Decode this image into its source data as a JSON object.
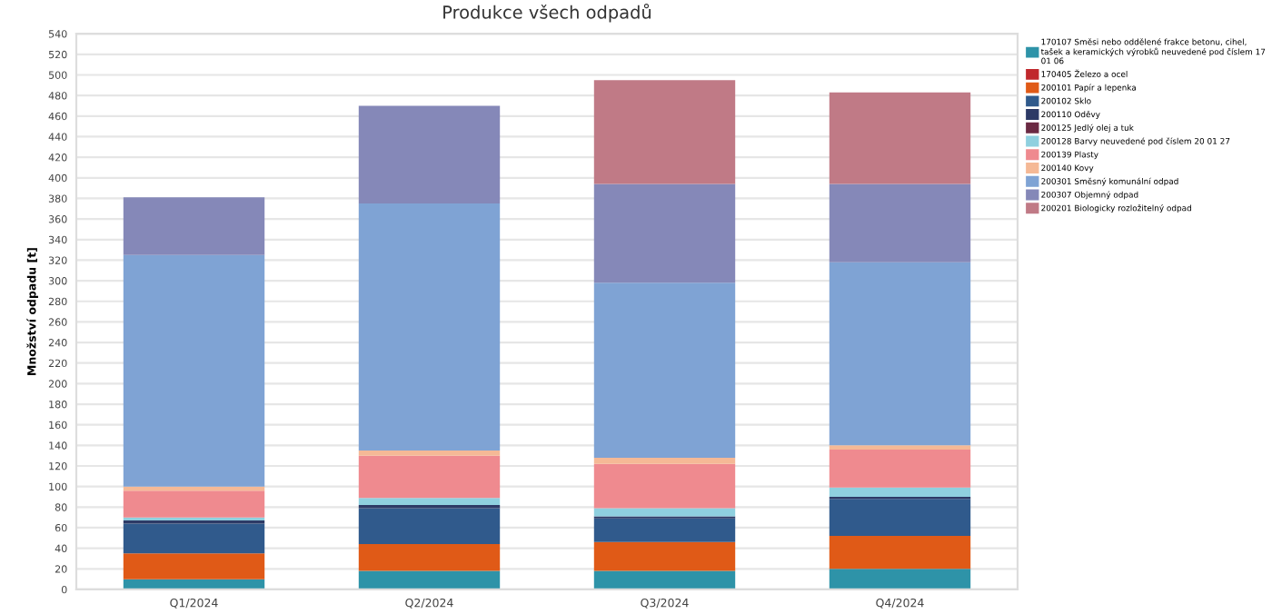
{
  "chart_data": {
    "type": "bar",
    "title": "Produkce všech odpadů",
    "ylabel": "Množství odpadu [t]",
    "categories": [
      "Q1/2024",
      "Q2/2024",
      "Q3/2024",
      "Q4/2024"
    ],
    "stacked": true,
    "ylim": [
      0,
      540
    ],
    "yticks": [
      0,
      20,
      40,
      60,
      80,
      100,
      120,
      140,
      160,
      180,
      200,
      220,
      240,
      260,
      280,
      300,
      320,
      340,
      360,
      380,
      400,
      420,
      440,
      460,
      480,
      500,
      520,
      540
    ],
    "grid": "y",
    "legend": "right",
    "series": [
      {
        "name": "170107 Směsi nebo oddělené frakce betonu, cihel,\ntašek a keramických výrobků neuvedené pod číslem 17\n01 06",
        "color": "#2e93a8",
        "values": [
          10,
          18,
          18,
          20
        ]
      },
      {
        "name": "170405 Železo a ocel",
        "color": "#c0282d",
        "values": [
          0,
          0,
          0,
          0
        ]
      },
      {
        "name": "200101 Papír a lepenka",
        "color": "#e05a17",
        "values": [
          25,
          26,
          28,
          32
        ]
      },
      {
        "name": "200102 Sklo",
        "color": "#305a8c",
        "values": [
          29,
          35,
          23,
          36
        ]
      },
      {
        "name": "200110 Oděvy",
        "color": "#2d3a66",
        "values": [
          3,
          3,
          2,
          2
        ]
      },
      {
        "name": "200125 Jedlý olej a tuk",
        "color": "#6b2a43",
        "values": [
          0,
          0,
          0,
          0
        ]
      },
      {
        "name": "200128 Barvy neuvedené pod číslem 20 01 27",
        "color": "#8fd0df",
        "values": [
          3,
          7,
          8,
          9
        ]
      },
      {
        "name": "200139 Plasty",
        "color": "#ef8a8f",
        "values": [
          26,
          41,
          43,
          37
        ]
      },
      {
        "name": "200140 Kovy",
        "color": "#f5b996",
        "values": [
          4,
          5,
          6,
          4
        ]
      },
      {
        "name": "200301 Směsný komunální odpad",
        "color": "#7fa3d4",
        "values": [
          225,
          240,
          170,
          178
        ]
      },
      {
        "name": "200307 Objemný odpad",
        "color": "#8588b8",
        "values": [
          56,
          95,
          96,
          76
        ]
      },
      {
        "name": "200201 Biologicky rozložitelný odpad",
        "color": "#c07a86",
        "values": [
          0,
          0,
          101,
          89
        ]
      }
    ]
  }
}
